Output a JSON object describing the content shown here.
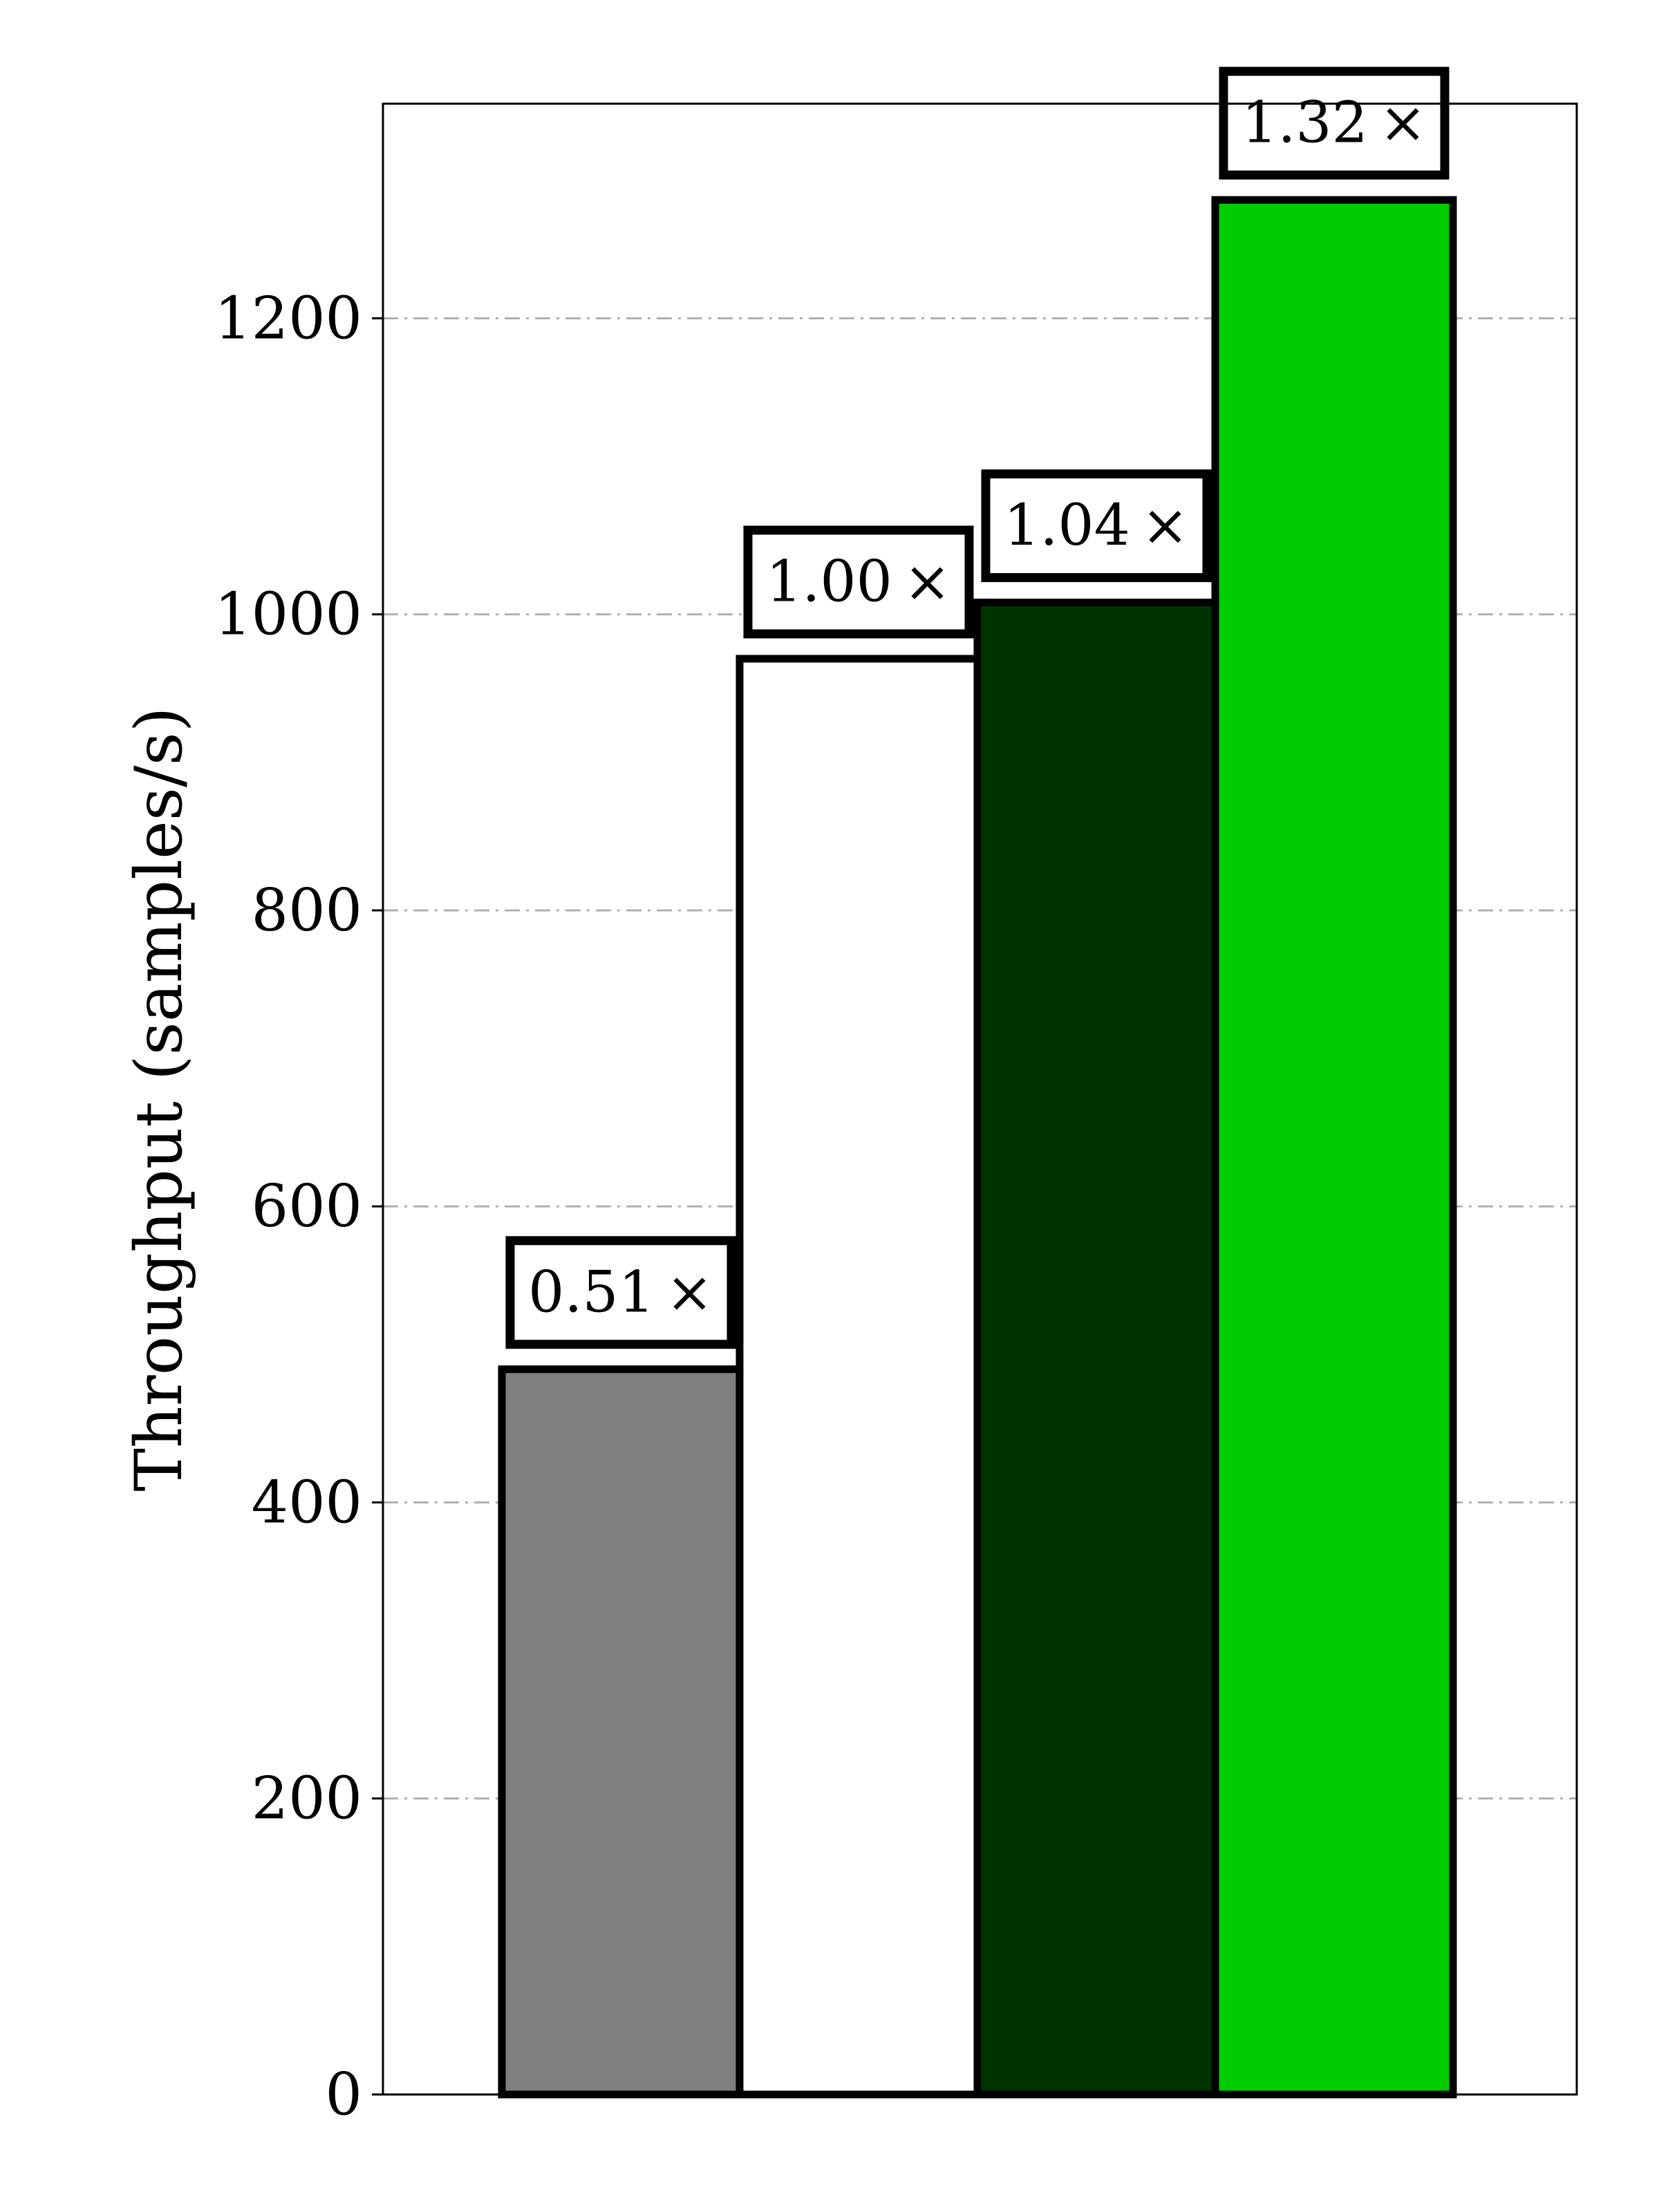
{
  "chart_data": {
    "type": "bar",
    "title": "",
    "xlabel": "",
    "ylabel": "Throughput (samples/s)",
    "ylim": [
      0,
      1345
    ],
    "yticks": [
      0,
      200,
      400,
      600,
      800,
      1000,
      1200
    ],
    "ytick_labels": [
      "0",
      "200",
      "400",
      "600",
      "800",
      "1000",
      "1200"
    ],
    "grid": "horizontal dash-dot",
    "legend": "none",
    "bars": [
      {
        "value": 490,
        "label": "0.51 ×",
        "color": "#808080"
      },
      {
        "value": 970,
        "label": "1.00 ×",
        "color": "#ffffff"
      },
      {
        "value": 1008,
        "label": "1.04 ×",
        "color": "#003300"
      },
      {
        "value": 1280,
        "label": "1.32 ×",
        "color": "#00cc00"
      }
    ]
  }
}
